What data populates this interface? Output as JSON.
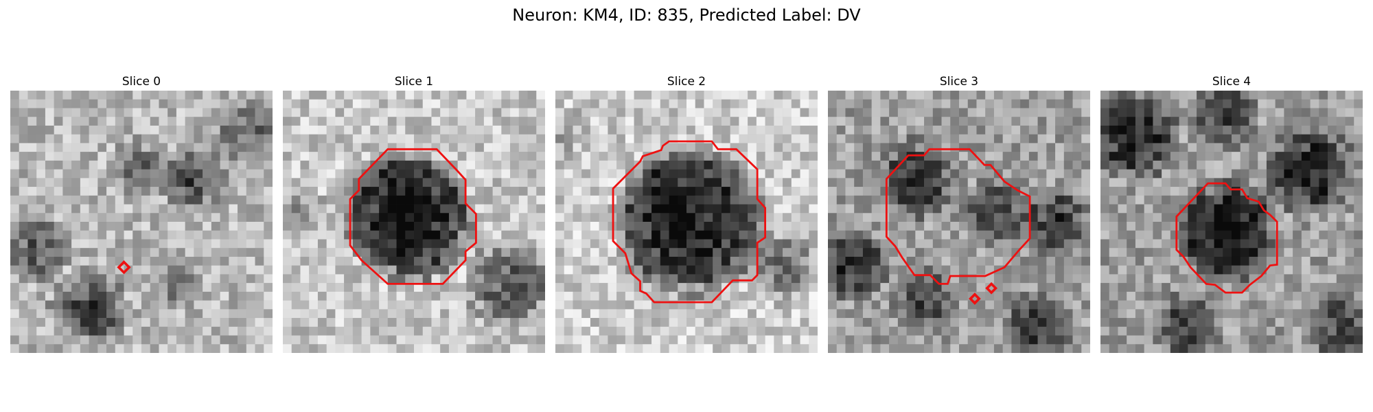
{
  "figure": {
    "title": "Neuron: KM4, ID: 835, Predicted Label: DV",
    "colors": {
      "contour": "#ee1111",
      "colormap": "gray"
    }
  },
  "panels": [
    {
      "title": "Slice 0",
      "contour": "tiny diamond marker"
    },
    {
      "title": "Slice 1",
      "contour": "octagon outline around dark cell body"
    },
    {
      "title": "Slice 2",
      "contour": "large octagon outline around dark cell body"
    },
    {
      "title": "Slice 3",
      "contour": "irregular outline plus two small diamond markers"
    },
    {
      "title": "Slice 4",
      "contour": "small irregular outline around dark cell body"
    }
  ]
}
